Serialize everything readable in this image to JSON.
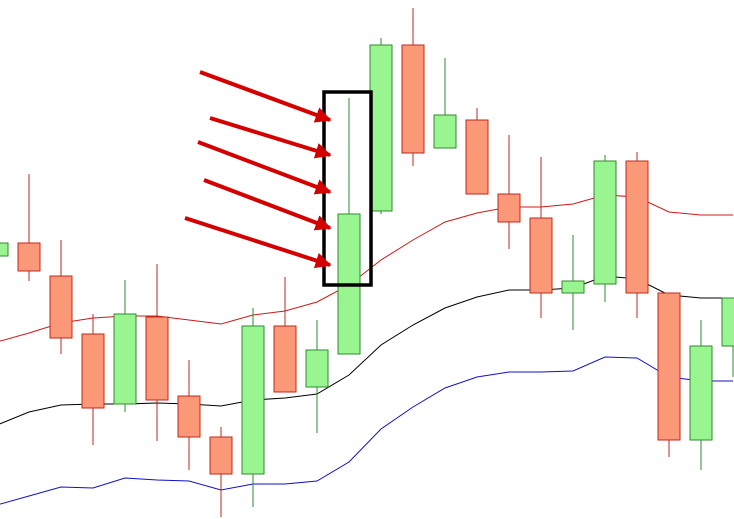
{
  "chart_data": {
    "type": "candlestick",
    "ylim": [
      0,
      519
    ],
    "open": [
      263,
      276,
      243,
      185,
      115,
      202,
      123,
      82,
      45,
      193,
      132,
      165,
      308,
      474,
      371,
      399,
      325,
      301,
      226,
      235,
      358,
      226,
      79,
      173
    ],
    "high": [
      276,
      345,
      279,
      205,
      239,
      255,
      159,
      92,
      211,
      242,
      199,
      421,
      481,
      511,
      461,
      411,
      384,
      362,
      284,
      364,
      367,
      226,
      199,
      221
    ],
    "low": [
      263,
      238,
      165,
      74,
      107,
      78,
      49,
      2,
      12,
      127,
      86,
      165,
      305,
      353,
      371,
      325,
      270,
      201,
      189,
      217,
      201,
      62,
      49,
      142
    ],
    "close": [
      276,
      248,
      181,
      111,
      205,
      119,
      82,
      45,
      193,
      127,
      169,
      305,
      474,
      366,
      404,
      325,
      297,
      226,
      238,
      358,
      226,
      79,
      173,
      221
    ],
    "up_color": "#99f58f",
    "up_edge": "#2f8a2f",
    "down_color": "#fa9878",
    "down_edge": "#c0281e",
    "lines": [
      {
        "color": "#d01818",
        "values": [
          177,
          186,
          196,
          201,
          203,
          203,
          199,
          195,
          204,
          208,
          217,
          234,
          259,
          279,
          297,
          306,
          312,
          312,
          315,
          324,
          322,
          307,
          304,
          304
        ]
      },
      {
        "color": "#000000",
        "values": [
          94,
          107,
          114,
          115,
          115,
          116,
          115,
          113,
          119,
          121,
          125,
          144,
          174,
          194,
          211,
          222,
          229,
          229,
          231,
          243,
          240,
          224,
          221,
          221
        ]
      },
      {
        "color": "#1010c8",
        "values": [
          14,
          23,
          32,
          31,
          41,
          39,
          38,
          29,
          35,
          35,
          38,
          57,
          90,
          112,
          131,
          142,
          147,
          147,
          148,
          162,
          161,
          142,
          138,
          138
        ]
      }
    ]
  }
}
